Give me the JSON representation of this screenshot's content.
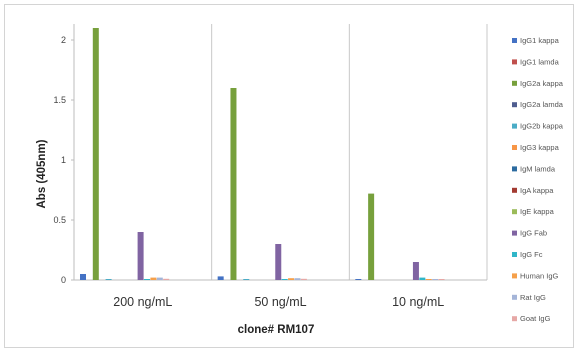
{
  "chart_data": {
    "type": "bar",
    "title": "",
    "xlabel": "clone# RM107",
    "ylabel": "Abs (405nm)",
    "ylim": [
      0,
      2.1
    ],
    "yticks": [
      0,
      0.5,
      1,
      1.5,
      2
    ],
    "ytick_labels": [
      "0",
      "0.5",
      "1",
      "1.5",
      "2"
    ],
    "grid": false,
    "group_separators": true,
    "legend_position": "right",
    "categories": [
      "200 ng/mL",
      "50 ng/mL",
      "10 ng/mL"
    ],
    "series": [
      {
        "name": "IgG1 kappa",
        "color": "#4472c4",
        "values": [
          0.05,
          0.03,
          0.005
        ]
      },
      {
        "name": "IgG1 lamda",
        "color": "#c0504d",
        "values": [
          0.0,
          0.0,
          0.0
        ]
      },
      {
        "name": "IgG2a kappa",
        "color": "#77a03c",
        "values": [
          2.1,
          1.6,
          0.72
        ]
      },
      {
        "name": "IgG2a lamda",
        "color": "#4f5d8f",
        "values": [
          0.0,
          0.0,
          0.0
        ]
      },
      {
        "name": "IgG2b kappa",
        "color": "#4bacc6",
        "values": [
          0.005,
          0.005,
          0.0
        ]
      },
      {
        "name": "IgG3 kappa",
        "color": "#f79646",
        "values": [
          0.0,
          0.0,
          0.0
        ]
      },
      {
        "name": "IgM lamda",
        "color": "#2c6ba0",
        "values": [
          0.0,
          0.0,
          0.0
        ]
      },
      {
        "name": "IgA kappa",
        "color": "#a33b32",
        "values": [
          0.0,
          0.0,
          0.0
        ]
      },
      {
        "name": "IgE kappa",
        "color": "#9bbb59",
        "values": [
          0.0,
          0.0,
          0.0
        ]
      },
      {
        "name": "IgG Fab",
        "color": "#8064a2",
        "values": [
          0.4,
          0.3,
          0.15
        ]
      },
      {
        "name": "IgG Fc",
        "color": "#31b6c8",
        "values": [
          0.005,
          0.005,
          0.02
        ]
      },
      {
        "name": "Human IgG",
        "color": "#f5a04a",
        "values": [
          0.02,
          0.015,
          0.005
        ]
      },
      {
        "name": "Rat IgG",
        "color": "#a5b5d8",
        "values": [
          0.02,
          0.015,
          0.005
        ]
      },
      {
        "name": "Goat IgG",
        "color": "#e6a8a6",
        "values": [
          0.01,
          0.01,
          0.005
        ]
      }
    ]
  }
}
